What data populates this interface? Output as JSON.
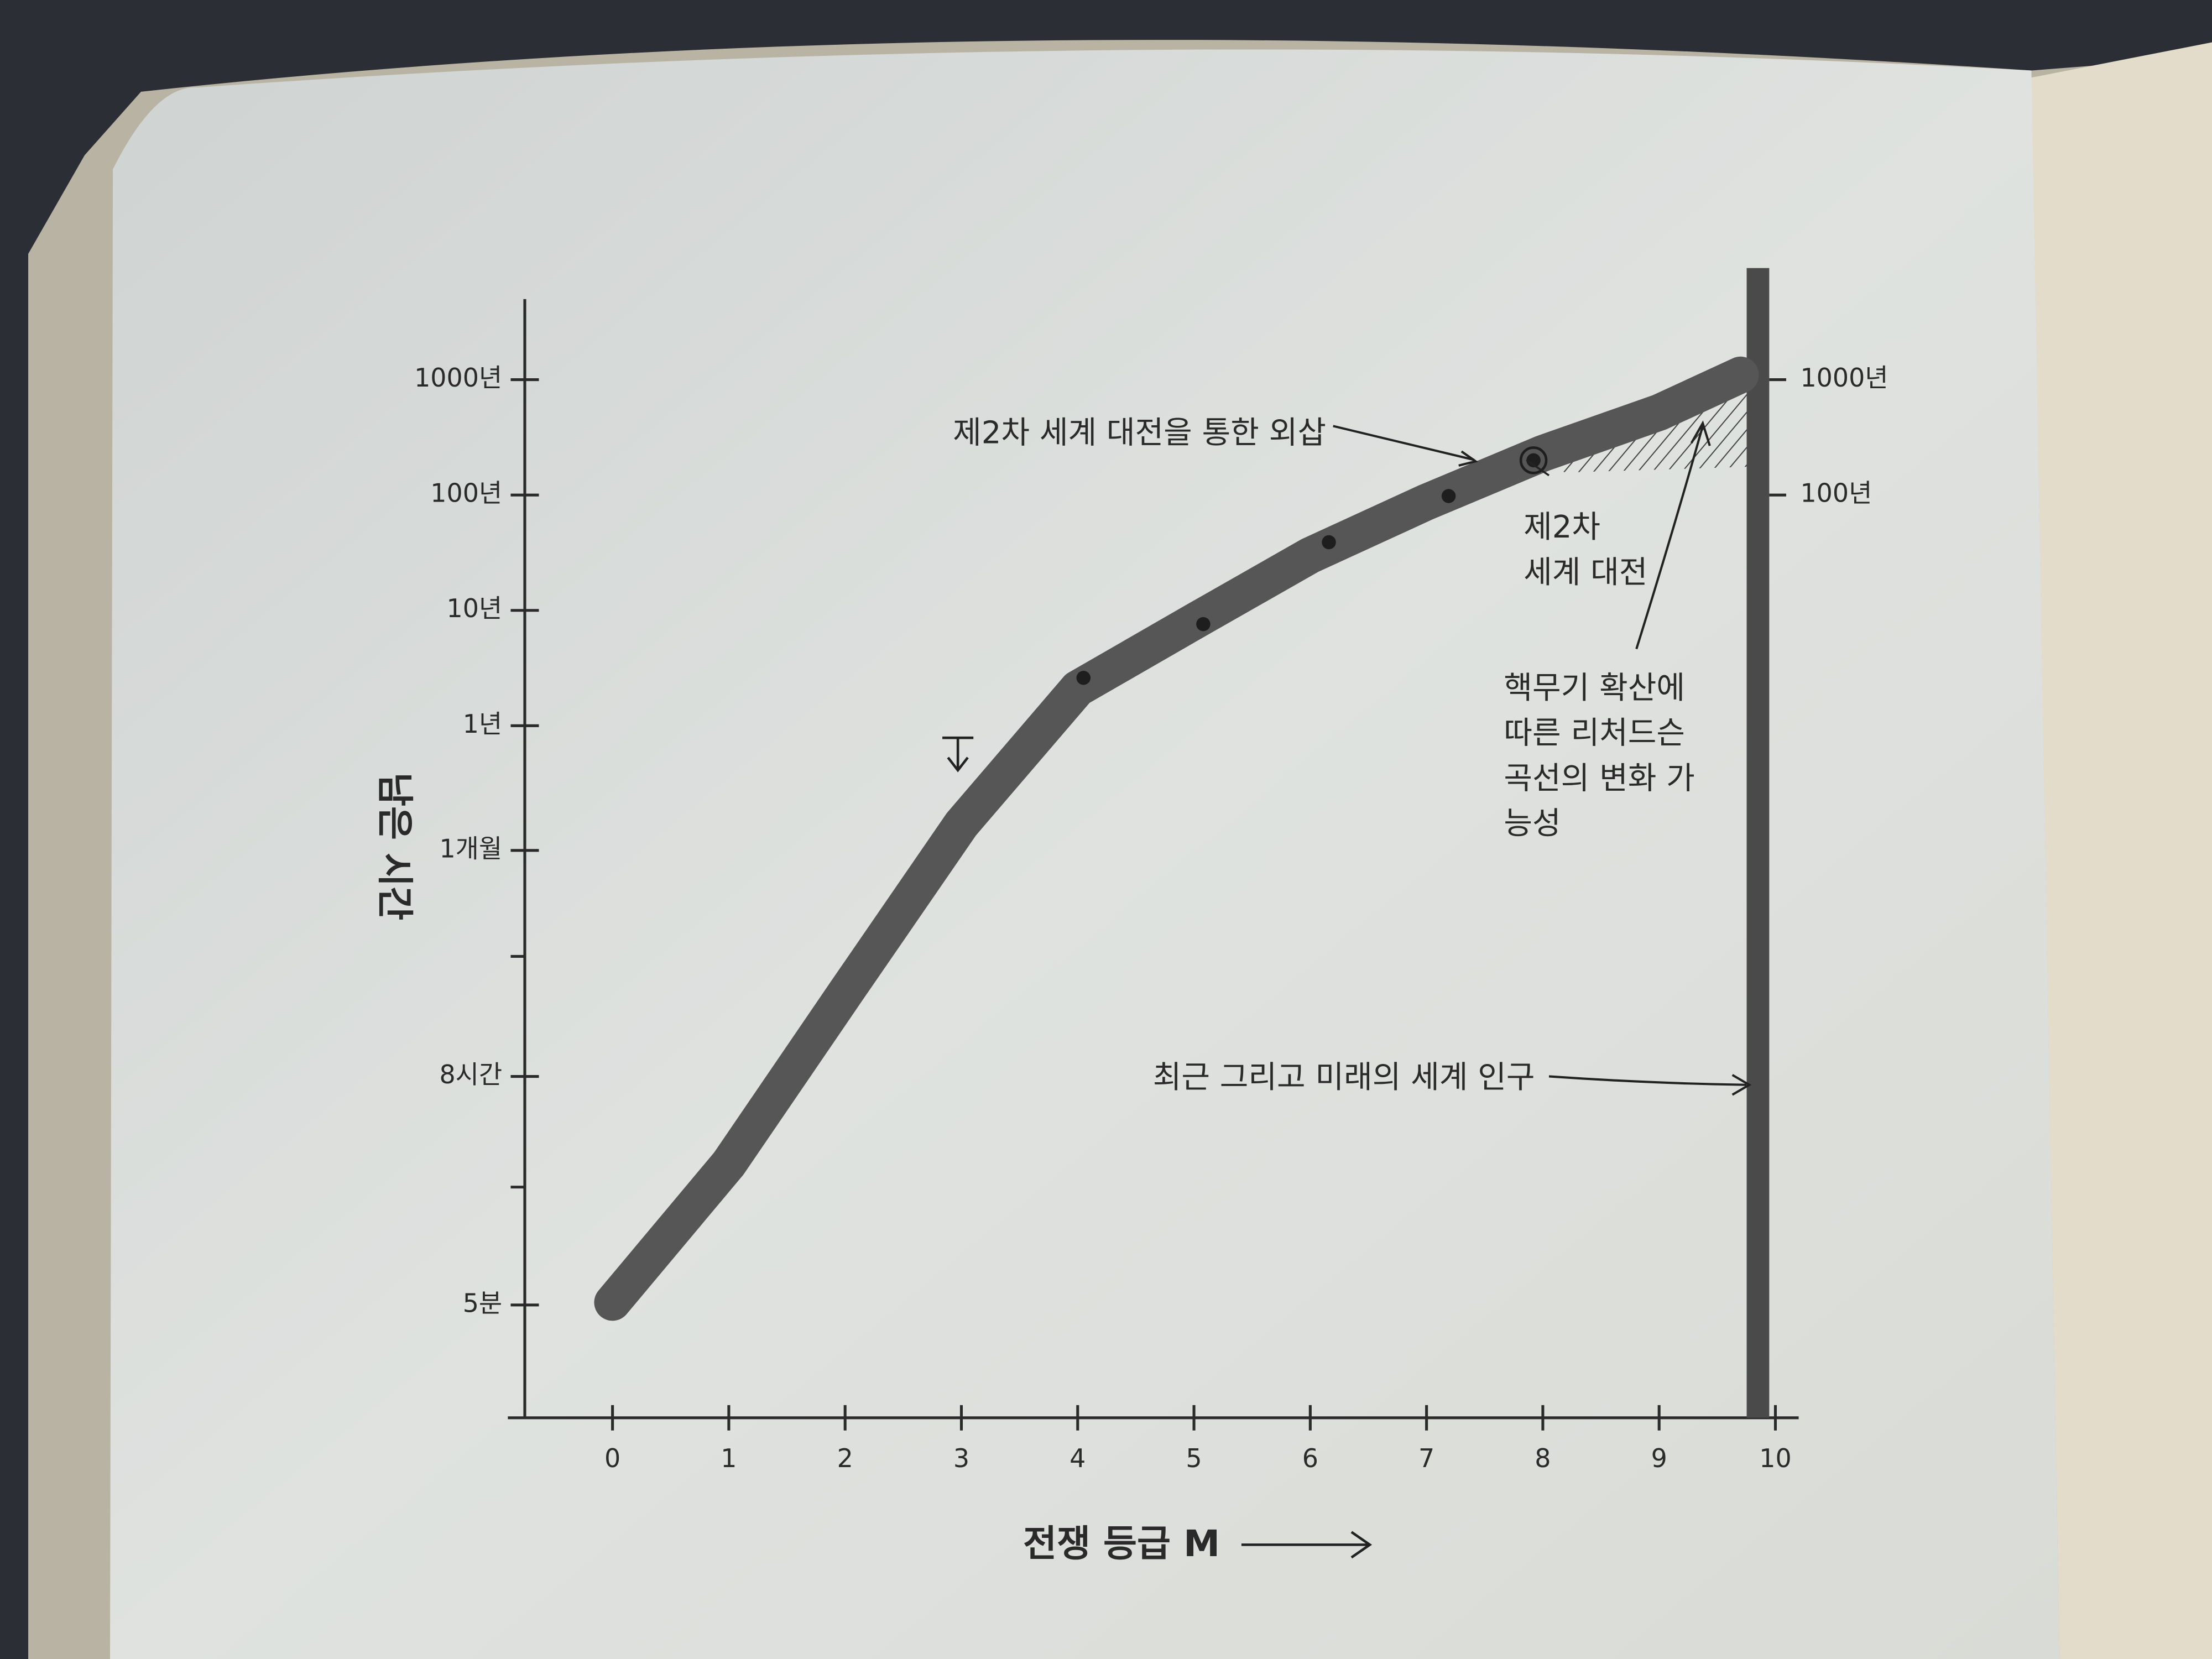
{
  "chart_data": {
    "type": "line",
    "x_label": "전쟁 등급 M",
    "y_label": "남은 시간",
    "x": [
      0,
      1,
      2,
      3,
      4,
      5,
      6,
      7,
      8,
      9,
      9.7
    ],
    "series": [
      {
        "type": "line",
        "color": "#565656",
        "values": [
          1e-05,
          0.00016,
          0.0048,
          0.14,
          2.1,
          8,
          30,
          87,
          230,
          520,
          1100
        ]
      },
      {
        "type": "scatter",
        "color": "#1e1e1e",
        "x": [
          4.05,
          5.08,
          6.16,
          7.19,
          7.92
        ],
        "values": [
          2.6,
          7.6,
          39,
          98,
          200
        ]
      }
    ],
    "xlim": [
      -0.9,
      10.2
    ],
    "xticks": [
      0,
      1,
      2,
      3,
      4,
      5,
      6,
      7,
      8,
      9,
      10
    ],
    "ylim": [
      1e-06,
      5000
    ],
    "ylog": true,
    "yticks": [
      {
        "value": 9.5e-06,
        "label": "5분"
      },
      {
        "value": 0.00091,
        "label": "8시간"
      },
      {
        "value": 0.083,
        "label": "1개월"
      },
      {
        "value": 1,
        "label": "1년"
      },
      {
        "value": 10,
        "label": "10년"
      },
      {
        "value": 100,
        "label": "100년"
      },
      {
        "value": 1000,
        "label": "1000년"
      }
    ],
    "yminor_ticks": [
      0.0001,
      0.01
    ],
    "y2ticks": [
      {
        "value": 100,
        "label": "100년"
      },
      {
        "value": 1000,
        "label": "1000년"
      }
    ],
    "population_x": 9.85,
    "annotations": [
      {
        "lines": [
          "제2차 세계 대전을 통한 외삽"
        ]
      },
      {
        "lines": [
          "제2차",
          "세계 대전"
        ]
      },
      {
        "lines": [
          "핵무기 확산에",
          "따른 리처드슨",
          "곡선의 변화 가",
          "능성"
        ]
      },
      {
        "lines": [
          "최근 그리고 미래의 세계 인구"
        ]
      }
    ]
  }
}
